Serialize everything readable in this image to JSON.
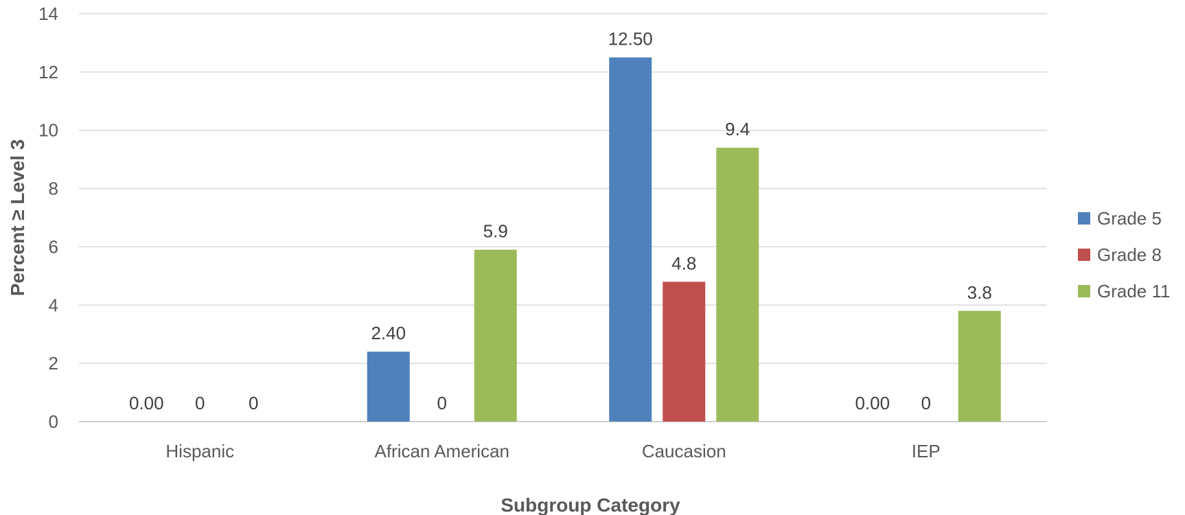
{
  "chart_data": {
    "type": "bar",
    "categories": [
      "Hispanic",
      "African American",
      "Caucasion",
      "IEP"
    ],
    "series": [
      {
        "name": "Grade 5",
        "color": "#4f81bd",
        "values": [
          0.0,
          2.4,
          12.5,
          0.0
        ],
        "labels": [
          "0.00",
          "2.40",
          "12.50",
          "0.00"
        ]
      },
      {
        "name": "Grade 8",
        "color": "#c0504d",
        "values": [
          0,
          0,
          4.8,
          0
        ],
        "labels": [
          "0",
          "0",
          "4.8",
          "0"
        ]
      },
      {
        "name": "Grade 11",
        "color": "#9bbb59",
        "values": [
          0,
          5.9,
          9.4,
          3.8
        ],
        "labels": [
          "0",
          "5.9",
          "9.4",
          "3.8"
        ]
      }
    ],
    "xlabel": "Subgroup Category",
    "ylabel": "Percent ≥ Level 3",
    "ylim": [
      0,
      14
    ],
    "yticks": [
      0,
      2,
      4,
      6,
      8,
      10,
      12,
      14
    ],
    "grid": true,
    "legend_position": "right"
  }
}
